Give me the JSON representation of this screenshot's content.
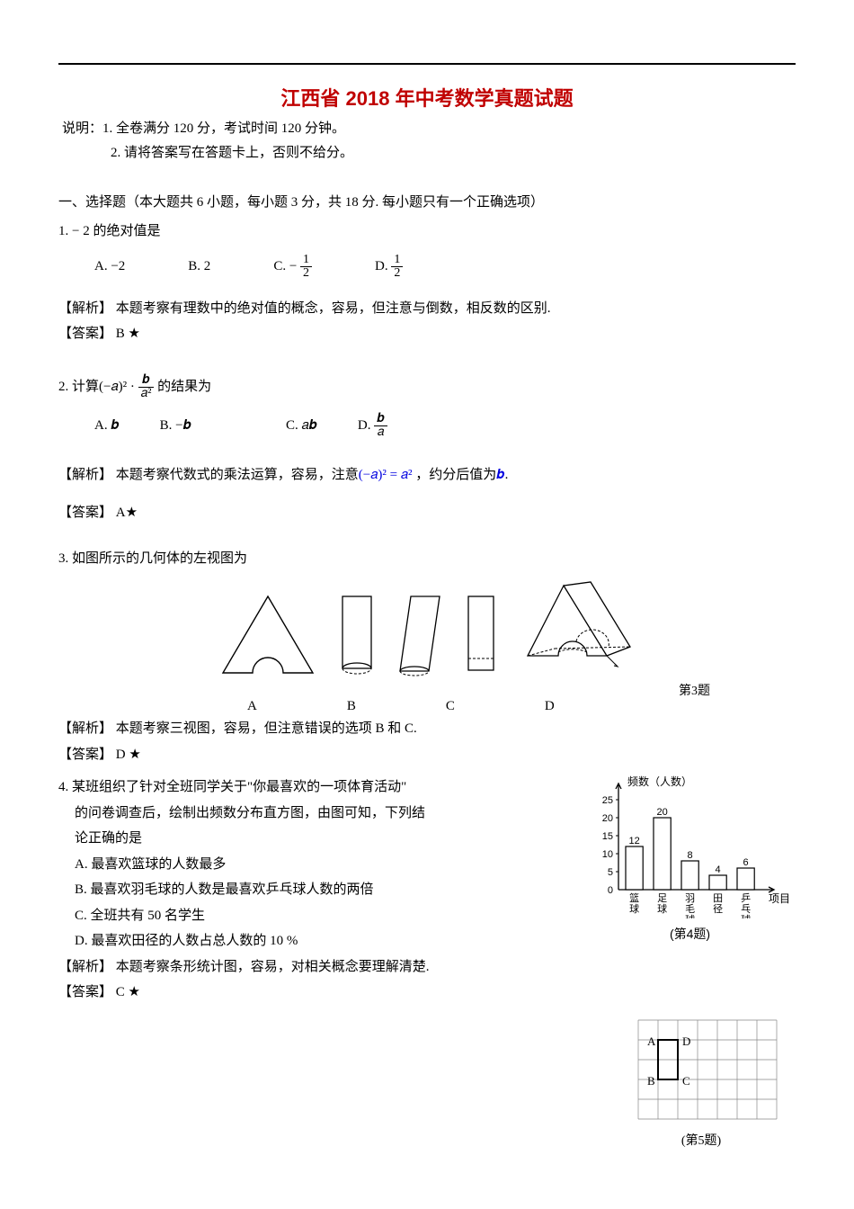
{
  "title": "江西省 2018 年中考数学真题试题",
  "intro1": "说明：1. 全卷满分 120 分，考试时间 120 分钟。",
  "intro2": "2. 请将答案写在答题卡上，否则不给分。",
  "sectionHead": "一、选择题（本大题共 6 小题，每小题 3 分，共 18 分. 每小题只有一个正确选项）",
  "q1": {
    "text": "1.  − 2 的绝对值是",
    "A": "A.  −2",
    "B": "B. 2",
    "Cprefix": "C.  − ",
    "Cn": "1",
    "Cd": "2",
    "Dprefix": "D. ",
    "Dn": "1",
    "Dd": "2",
    "analysisLabel": "【解析】",
    "analysis": "  本题考察有理数中的绝对值的概念，容易，但注意与倒数，相反数的区别.",
    "ansLabel": "【答案】",
    "ans": "  B ★"
  },
  "q2": {
    "prefix": "2. 计算",
    "expr1": "(−𝑎)² · ",
    "fn": "𝒃",
    "fd": "𝑎²",
    "suffix": " 的结果为",
    "A": "A.  𝒃",
    "B": "B. −𝒃",
    "C": "C. 𝑎𝒃",
    "Dprefix": "D. ",
    "Dn": "𝒃",
    "Dd": "𝑎",
    "analysisLabel": "【解析】",
    "analysisP1": "  本题考察代数式的乘法运算，容易，注意",
    "analysisBlue": "(−𝑎)² = 𝑎²",
    "analysisP2": " ，约分后值为",
    "analysisBlue2": "𝒃",
    "analysisP3": ".",
    "ansLabel": "【答案】",
    "ans": "  A★"
  },
  "q3": {
    "text": "3. 如图所示的几何体的左视图为",
    "labA": "A",
    "labB": "B",
    "labC": "C",
    "labD": "D",
    "caption": "第3题",
    "analysisLabel": "【解析】",
    "analysis": "  本题考察三视图，容易，但注意错误的选项 B 和 C.",
    "ansLabel": "【答案】",
    "ans": "  D ★"
  },
  "q4": {
    "l1": "4. 某班组织了针对全班同学关于\"你最喜欢的一项体育活动\"",
    "l2": "的问卷调查后，绘制出频数分布直方图，由图可知，下列结",
    "l3": "论正确的是",
    "A": "A. 最喜欢篮球的人数最多",
    "B": "B. 最喜欢羽毛球的人数是最喜欢乒乓球人数的两倍",
    "C": "C. 全班共有 50 名学生",
    "D": "D. 最喜欢田径的人数占总人数的 10  %",
    "analysisLabel": "【解析】",
    "analysis": "  本题考察条形统计图，容易，对相关概念要理解清楚.",
    "ansLabel": "【答案】",
    "ans": "  C ★",
    "chart": {
      "yTitle": "频数（人数）",
      "yTicks": [
        0,
        5,
        10,
        15,
        20,
        25
      ],
      "cats": [
        "篮球",
        "足球",
        "羽毛球",
        "田径",
        "乒乓球"
      ],
      "vals": [
        12,
        20,
        8,
        4,
        6
      ],
      "xTitle": "项目",
      "caption": "(第4题)",
      "barColor": "#ffffff",
      "barBorder": "#000000",
      "axisColor": "#000000"
    }
  },
  "q5": {
    "grid": {
      "labels": {
        "A": "A",
        "B": "B",
        "C": "C",
        "D": "D"
      },
      "caption": "(第5题)"
    }
  }
}
